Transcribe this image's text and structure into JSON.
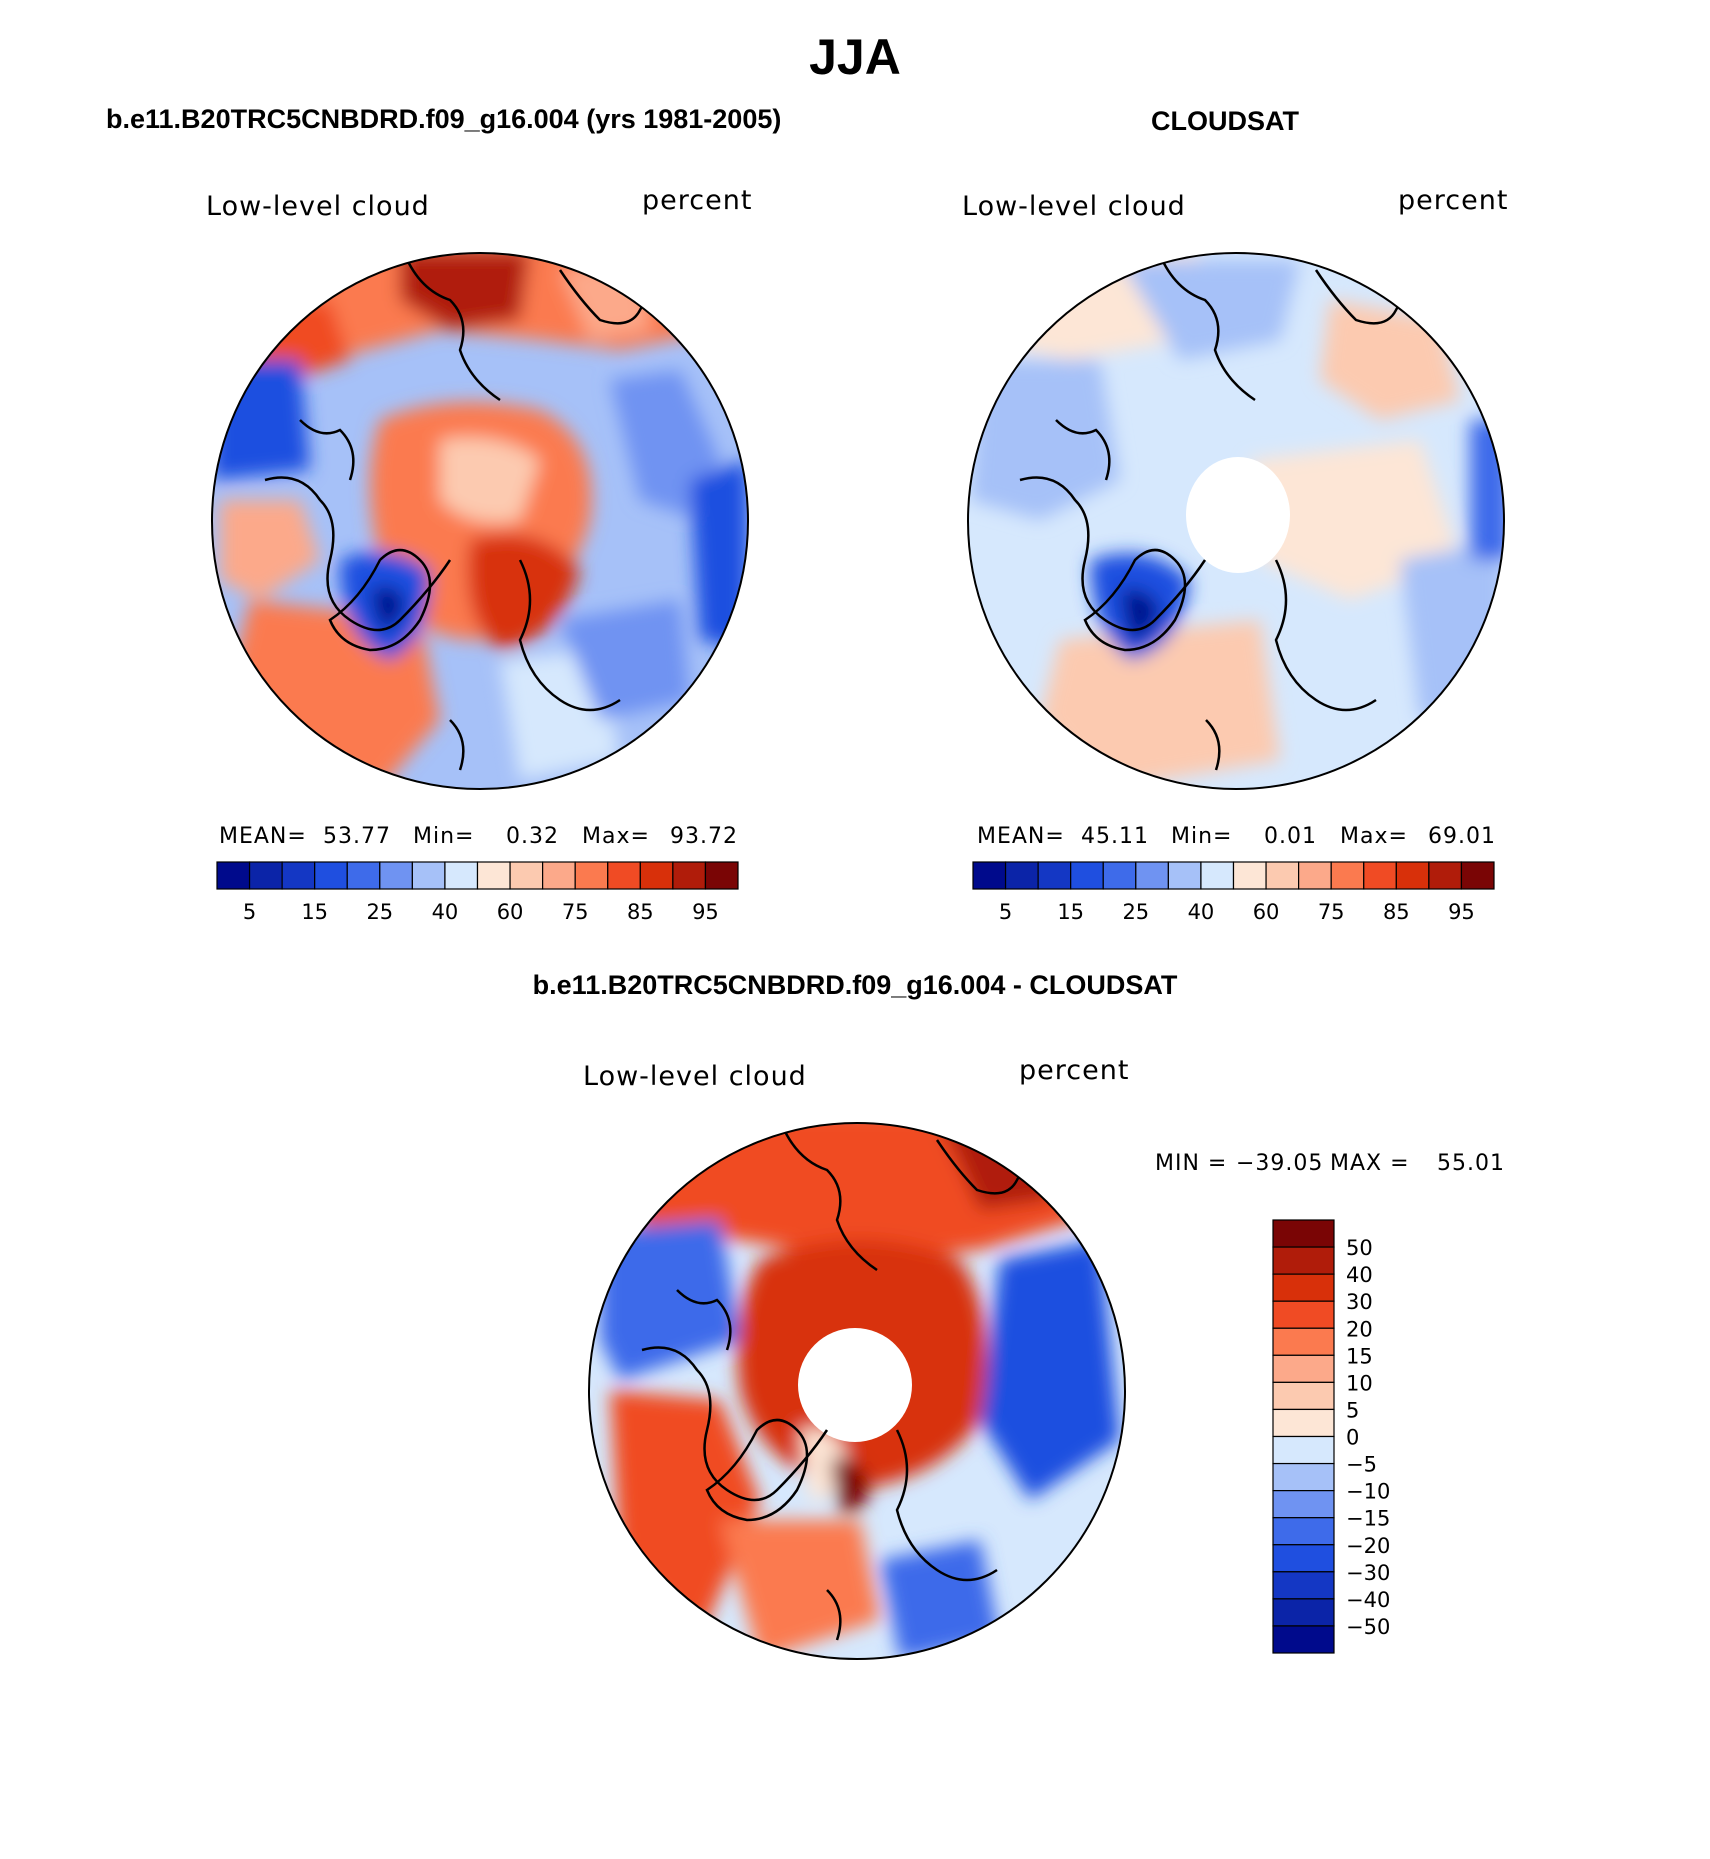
{
  "figure": {
    "title": "JJA"
  },
  "panels": [
    {
      "id": "model",
      "title": "b.e11.B20TRC5CNBDRD.f09_g16.004 (yrs 1981-2005)",
      "left_label": "Low-level cloud",
      "right_label": "percent",
      "stats": {
        "mean_label": "MEAN=",
        "mean": "53.77",
        "min_label": "Min=",
        "min": "0.32",
        "max_label": "Max=",
        "max": "93.72"
      }
    },
    {
      "id": "obs",
      "title": "CLOUDSAT",
      "left_label": "Low-level cloud",
      "right_label": "percent",
      "stats": {
        "mean_label": "MEAN=",
        "mean": "45.11",
        "min_label": "Min=",
        "min": "0.01",
        "max_label": "Max=",
        "max": "69.01"
      }
    },
    {
      "id": "diff",
      "title": "b.e11.B20TRC5CNBDRD.f09_g16.004 - CLOUDSAT",
      "left_label": "Low-level cloud",
      "right_label": "percent",
      "stats": {
        "min_label": "MIN =",
        "min": "−39.05",
        "max_label": "MAX =",
        "max": "55.01"
      }
    }
  ],
  "colorbars": {
    "abs": {
      "colors": [
        "#000a8c",
        "#0b24a8",
        "#1437c4",
        "#1f4fe0",
        "#3e6bea",
        "#6f93f2",
        "#a6c1f8",
        "#d6e8fd",
        "#fde6d6",
        "#fccab0",
        "#fca98a",
        "#fb7a4f",
        "#f04b24",
        "#d8300a",
        "#b01c0a",
        "#7a0505"
      ],
      "tick_labels": [
        "5",
        "15",
        "25",
        "40",
        "60",
        "75",
        "85",
        "95"
      ],
      "tick_positions": [
        1,
        3,
        5,
        7,
        9,
        11,
        13,
        15
      ]
    },
    "diff": {
      "colors": [
        "#7a0505",
        "#b01c0a",
        "#d8300a",
        "#f04b24",
        "#fb7a4f",
        "#fca98a",
        "#fccab0",
        "#fde6d6",
        "#d6e8fd",
        "#a6c1f8",
        "#6f93f2",
        "#3e6bea",
        "#1f4fe0",
        "#1437c4",
        "#0b24a8",
        "#000a8c"
      ],
      "tick_labels": [
        "50",
        "40",
        "30",
        "20",
        "15",
        "10",
        "5",
        "0",
        "−5",
        "−10",
        "−15",
        "−20",
        "−30",
        "−40",
        "−50"
      ]
    }
  },
  "chart_data": {
    "type": "heatmap",
    "projection": "north polar stereographic",
    "season": "JJA",
    "variable": "Low-level cloud",
    "units": "percent",
    "abs_contour_levels": [
      5,
      10,
      15,
      20,
      25,
      30,
      40,
      50,
      60,
      65,
      75,
      80,
      85,
      90,
      95
    ],
    "diff_contour_levels": [
      -50,
      -40,
      -30,
      -20,
      -15,
      -10,
      -5,
      0,
      5,
      10,
      15,
      20,
      30,
      40,
      50
    ],
    "maps": [
      {
        "name": "model",
        "mean": 53.77,
        "min": 0.32,
        "max": 93.72
      },
      {
        "name": "obs",
        "mean": 45.11,
        "min": 0.01,
        "max": 69.01
      },
      {
        "name": "diff",
        "min": -39.05,
        "max": 55.01
      }
    ]
  }
}
